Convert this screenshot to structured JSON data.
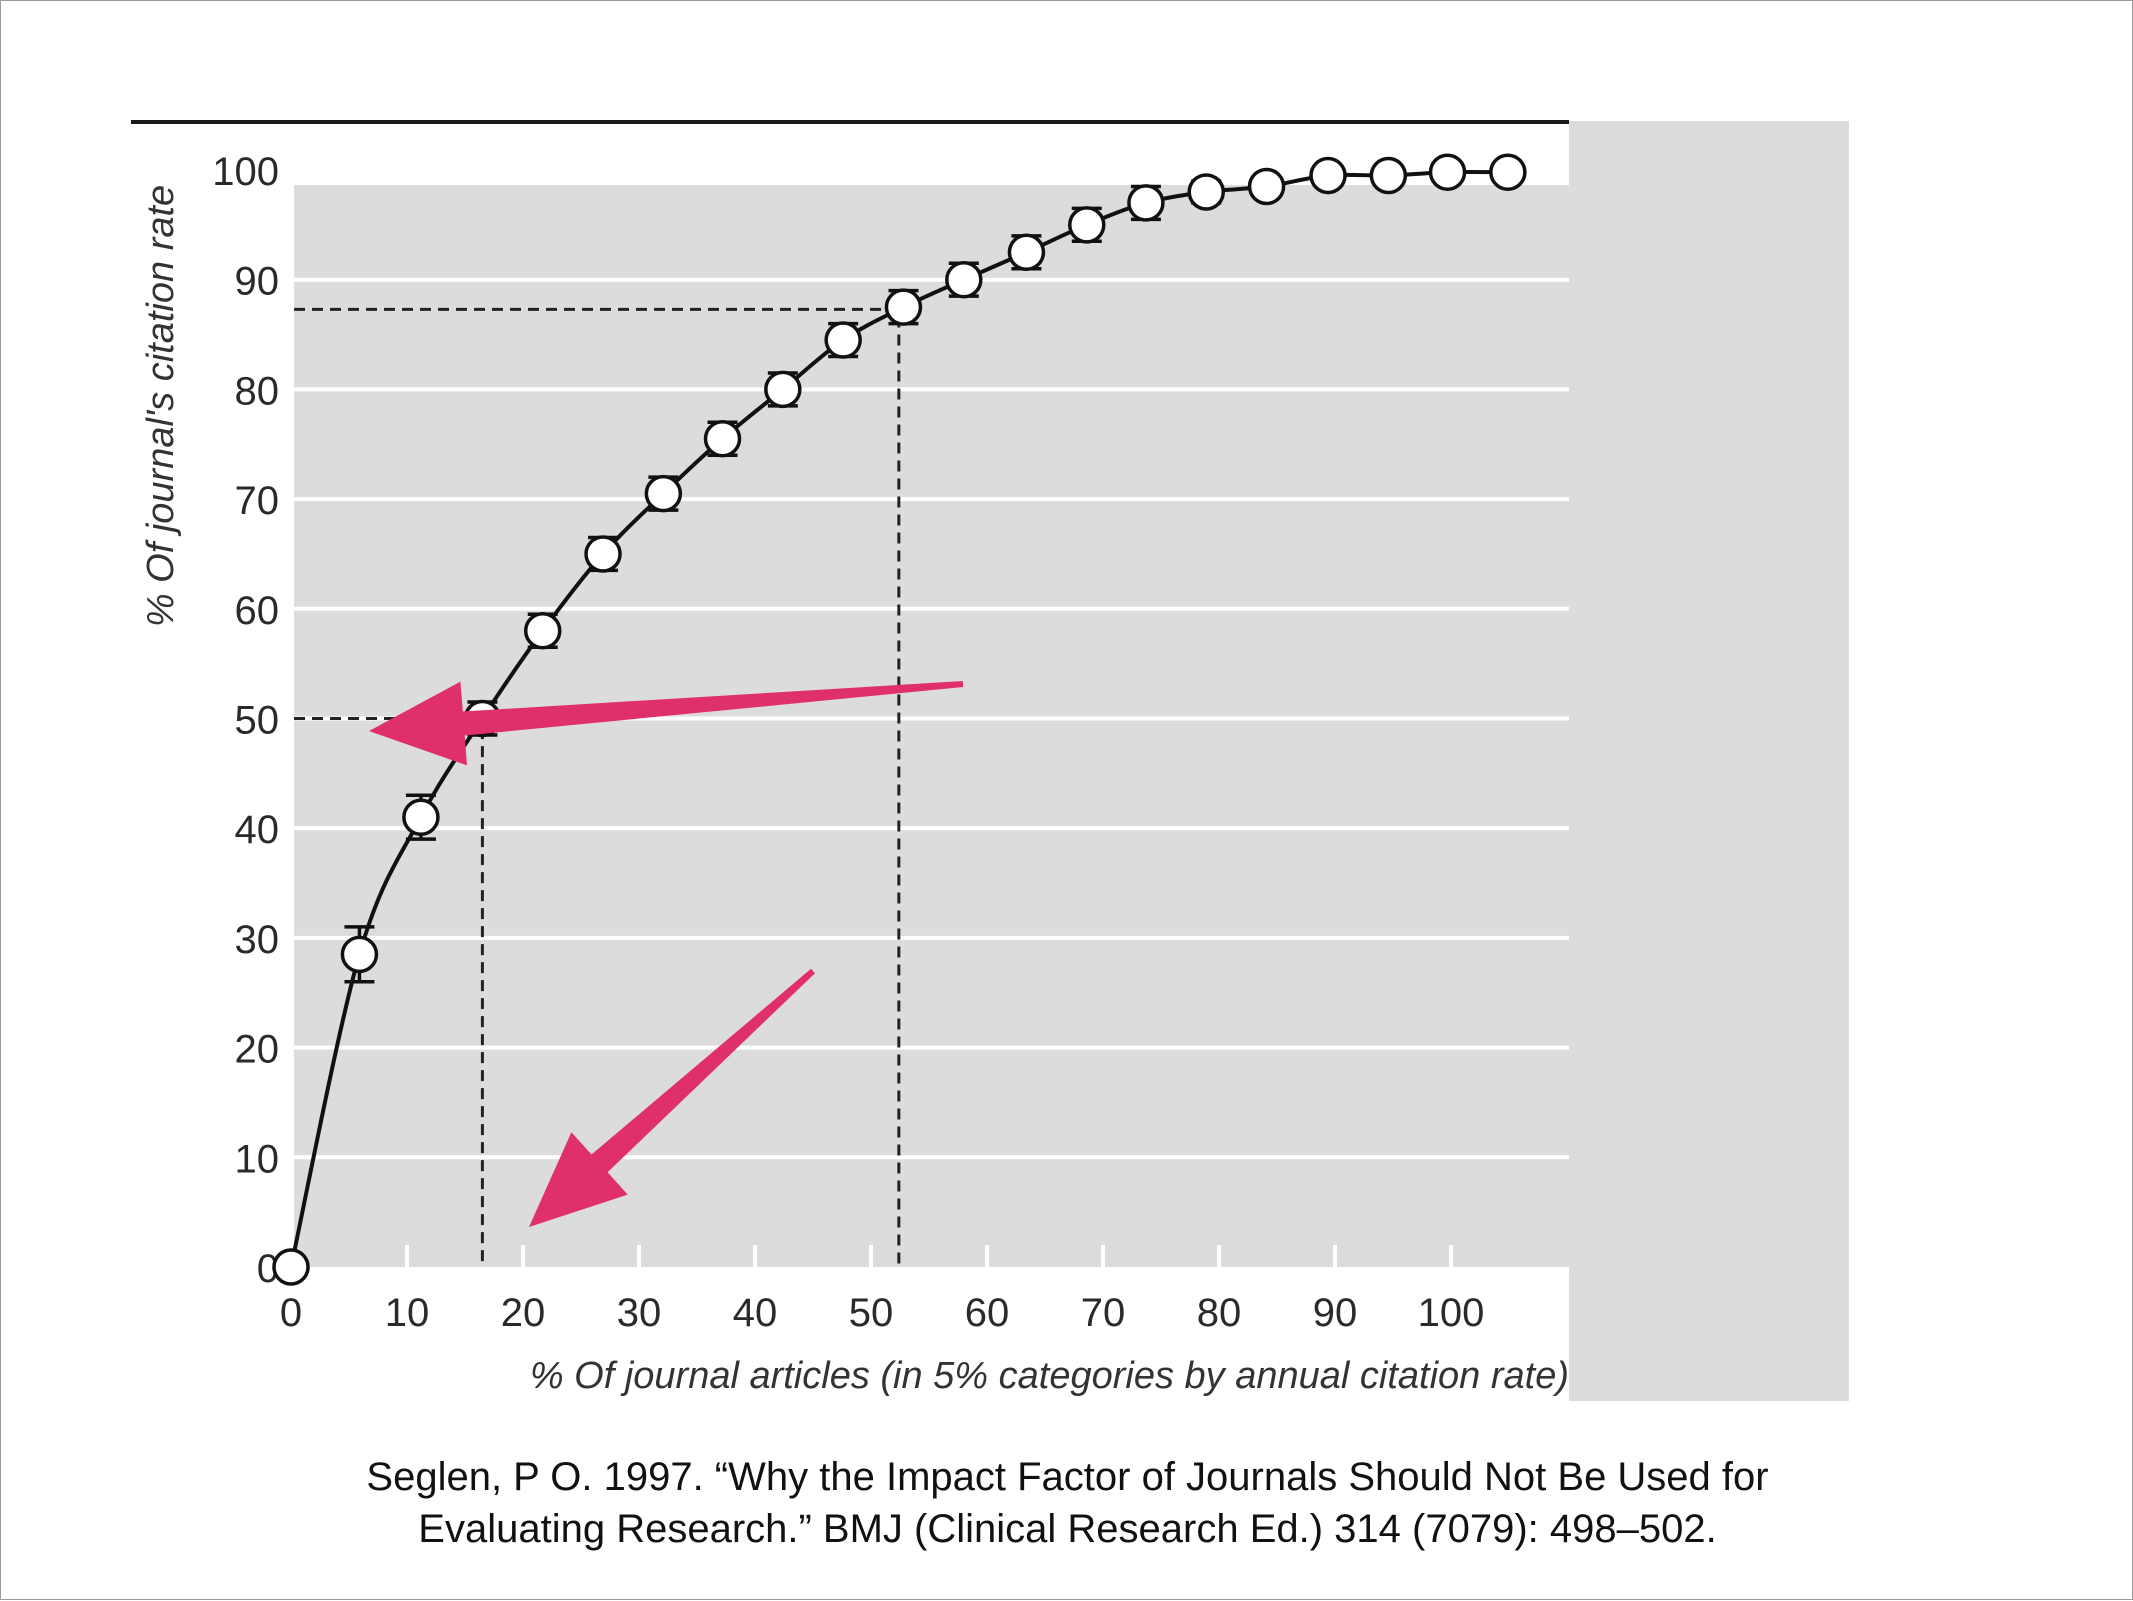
{
  "chart_data": {
    "type": "line",
    "title": "",
    "xlabel": "% Of journal articles (in 5% categories by annual citation rate)",
    "ylabel": "% Of journal's citation rate",
    "xlim": [
      0,
      110
    ],
    "ylim": [
      0,
      100
    ],
    "x_ticks": [
      0,
      10,
      20,
      30,
      40,
      50,
      60,
      70,
      80,
      90,
      100
    ],
    "y_ticks": [
      0,
      10,
      20,
      30,
      40,
      50,
      60,
      70,
      80,
      90,
      100
    ],
    "grid": true,
    "legend": "none",
    "series": [
      {
        "x": [
          0,
          5.9,
          11.2,
          16.5,
          21.7,
          26.9,
          32.1,
          37.2,
          42.4,
          47.6,
          52.8,
          58.0,
          63.4,
          68.6,
          73.7,
          78.9,
          84.1,
          89.4,
          94.6,
          99.7,
          104.9
        ],
        "values": [
          0,
          28.5,
          41,
          50,
          58,
          65,
          70.5,
          75.5,
          80,
          84.5,
          87.5,
          90,
          92.5,
          95,
          97,
          98,
          98.5,
          99.5,
          99.5,
          99.8,
          99.8
        ],
        "error": [
          0,
          2.5,
          2,
          1.5,
          1.5,
          1.5,
          1.5,
          1.5,
          1.5,
          1.5,
          1.5,
          1.5,
          1.5,
          1.5,
          1.5,
          1.0,
          0,
          0,
          0,
          0,
          0
        ]
      }
    ],
    "reference_lines": [
      {
        "x": 16.5,
        "y": 50
      },
      {
        "x": 52.4,
        "y": 87.3
      }
    ],
    "annotations": [
      {
        "type": "arrow",
        "points_to": "y = 50"
      },
      {
        "type": "arrow",
        "points_to": "x ≈ 20"
      }
    ]
  },
  "caption": {
    "line1": "Seglen, P O. 1997. “Why the Impact Factor of Journals Should Not Be Used for",
    "line2": "Evaluating Research.” BMJ (Clinical Research Ed.) 314 (7079): 498–502."
  },
  "colors": {
    "plot_background": "#dcdcdc",
    "gridline": "#ffffff",
    "curve": "#111111",
    "marker_fill": "#ffffff",
    "arrow": "#e0306a"
  }
}
